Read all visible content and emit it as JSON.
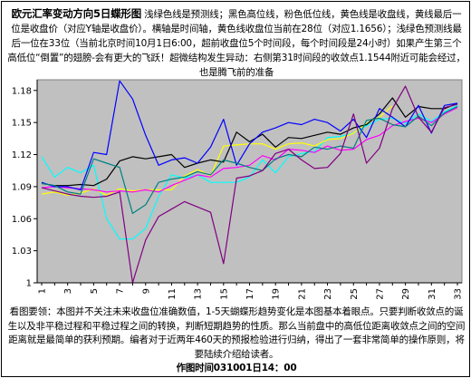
{
  "header": {
    "title": "欧元汇率变动方向5日蝶形图",
    "text": "浅绿色线是预测线；黑色高位线，粉色低位线，黄色线是收盘线，黄线最后一位是收盘价（对应Y轴是收盘价）。横轴是时间轴，黄色线收盘位当前在28位（对应1.1656）；浅绿色预测线最后一位在33位（当前北京时间10月1日6:00，超前收盘位5个时间段，每个时间段是24小时）如果产生第三个高低位“倒置”的翅膀-会有更大的飞跃！超微结构发生异动：右侧第31时间段的收敛点1.1544附近可能会经过，也是腾飞前的准备"
  },
  "footer": {
    "text": "看图要领：本图并不关注未来收盘位准确数值，1-5天蝴蝶形趋势变化是本图基本着眼点。只要判断收敛点的诞生以及非平稳过程和平稳过程之间的转换，判断短期趋势的性质。那么当前盘中的高低位距离收敛点之间的空间距离就是最简单的获利预期。编者对于近两年460天的预报检验进行归纳，得出了一套非常简单的操作原则，将要陆续介绍给读者。",
    "time": "作图时间031001日14：00"
  },
  "colors": {
    "plot_bg": "#c0c0c0",
    "outer_bg": "#ffffff"
  },
  "chart_data": {
    "type": "line",
    "title": "欧元汇率变动方向5日蝶形图",
    "xlabel": "",
    "ylabel": "",
    "x": [
      1,
      2,
      3,
      4,
      5,
      6,
      7,
      8,
      9,
      10,
      11,
      12,
      13,
      14,
      15,
      16,
      17,
      18,
      19,
      20,
      21,
      22,
      23,
      24,
      25,
      26,
      27,
      28,
      29,
      30,
      31,
      32,
      33
    ],
    "x_tick_labels": [
      "1",
      "3",
      "5",
      "7",
      "9",
      "11",
      "13",
      "15",
      "17",
      "19",
      "21",
      "23",
      "25",
      "27",
      "29",
      "31",
      "33"
    ],
    "ylim": [
      1.0,
      1.19
    ],
    "y_ticks": [
      1,
      1.03,
      1.06,
      1.09,
      1.12,
      1.15,
      1.18
    ],
    "grid": false,
    "series": [
      {
        "color": "#00ffff",
        "values": [
          1.118,
          1.099,
          1.108,
          1.103,
          1.11,
          1.06,
          1.041,
          1.041,
          1.051,
          1.081,
          1.101,
          1.098,
          1.101,
          1.094,
          1.094,
          1.094,
          1.099,
          1.115,
          1.103,
          1.118,
          1.121,
          1.123,
          1.136,
          1.137,
          1.14,
          1.147,
          1.153,
          1.154,
          1.149,
          1.158,
          1.151,
          1.16,
          1.166
        ]
      },
      {
        "color": "#ffff00",
        "values": [
          1.083,
          1.085,
          1.082,
          1.084,
          1.088,
          1.082,
          1.088,
          1.086,
          1.087,
          1.087,
          1.087,
          1.1,
          1.106,
          1.1,
          1.128,
          1.129,
          1.13,
          1.13,
          1.125,
          1.13,
          1.131,
          1.128,
          1.134,
          1.135,
          1.14,
          1.149,
          1.155,
          1.1656,
          null,
          null,
          null,
          null,
          null
        ]
      },
      {
        "color": "#ff00ff",
        "values": [
          1.089,
          1.09,
          1.089,
          1.088,
          1.087,
          1.085,
          1.086,
          1.085,
          1.087,
          1.085,
          1.091,
          1.096,
          1.101,
          1.099,
          1.107,
          1.108,
          1.11,
          1.119,
          1.115,
          1.125,
          1.124,
          1.122,
          1.128,
          1.124,
          1.125,
          1.134,
          1.138,
          1.147,
          1.151,
          1.154,
          1.15,
          1.158,
          1.164
        ]
      },
      {
        "color": "#000000",
        "values": [
          1.093,
          1.091,
          1.091,
          1.092,
          1.091,
          1.097,
          1.114,
          1.118,
          1.116,
          1.118,
          1.12,
          1.108,
          1.112,
          1.115,
          1.113,
          1.141,
          1.132,
          1.139,
          1.127,
          1.136,
          1.135,
          1.138,
          1.141,
          1.139,
          1.145,
          1.148,
          1.158,
          1.173,
          1.155,
          1.165,
          1.163,
          1.163,
          1.168
        ]
      },
      {
        "color": "#0000ff",
        "values": [
          1.094,
          1.09,
          1.09,
          1.087,
          1.122,
          1.12,
          1.189,
          1.172,
          1.138,
          1.11,
          1.115,
          1.117,
          1.112,
          1.127,
          1.153,
          1.11,
          1.13,
          1.141,
          1.145,
          1.15,
          1.148,
          1.153,
          1.15,
          1.142,
          1.153,
          1.136,
          1.163,
          1.155,
          1.146,
          1.166,
          1.14,
          1.166,
          1.168
        ]
      },
      {
        "color": "#008080",
        "values": [
          1.093,
          1.091,
          1.085,
          1.083,
          1.116,
          1.112,
          1.108,
          1.065,
          1.073,
          1.094,
          1.097,
          1.099,
          1.104,
          1.101,
          1.115,
          1.112,
          1.108,
          1.105,
          1.116,
          1.12,
          1.118,
          1.127,
          1.125,
          1.128,
          1.126,
          1.152,
          1.154,
          1.148,
          1.146,
          1.156,
          1.147,
          1.159,
          1.165
        ]
      },
      {
        "color": "#800080",
        "values": [
          1.089,
          1.086,
          1.083,
          1.081,
          1.08,
          1.081,
          1.085,
          1.0,
          1.04,
          1.062,
          1.069,
          1.076,
          1.071,
          1.066,
          1.018,
          1.098,
          1.1,
          1.105,
          1.121,
          1.125,
          1.115,
          1.107,
          1.108,
          1.121,
          1.158,
          1.112,
          1.126,
          1.163,
          1.184,
          1.155,
          1.141,
          1.164,
          1.167
        ]
      }
    ]
  }
}
